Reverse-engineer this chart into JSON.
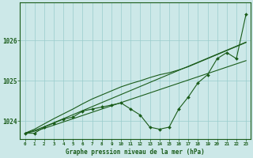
{
  "xlabel": "Graphe pression niveau de la mer (hPa)",
  "ylim": [
    1023.55,
    1026.95
  ],
  "xlim": [
    -0.5,
    23.5
  ],
  "yticks": [
    1024,
    1025,
    1026
  ],
  "xticks": [
    0,
    1,
    2,
    3,
    4,
    5,
    6,
    7,
    8,
    9,
    10,
    11,
    12,
    13,
    14,
    15,
    16,
    17,
    18,
    19,
    20,
    21,
    22,
    23
  ],
  "background_color": "#cce8e8",
  "grid_color": "#99cccc",
  "line_color": "#1a5c1a",
  "marker_line": [
    1023.7,
    1023.7,
    1023.85,
    1023.95,
    1024.05,
    1024.1,
    1024.25,
    1024.3,
    1024.35,
    1024.4,
    1024.45,
    1024.3,
    1024.15,
    1023.85,
    1023.8,
    1023.85,
    1024.3,
    1024.6,
    1024.95,
    1025.15,
    1025.55,
    1025.7,
    1025.55,
    1026.65
  ],
  "straight_lines": [
    [
      1023.7,
      1023.75,
      1023.82,
      1023.9,
      1023.98,
      1024.06,
      1024.14,
      1024.22,
      1024.3,
      1024.38,
      1024.46,
      1024.54,
      1024.62,
      1024.7,
      1024.78,
      1024.86,
      1024.94,
      1025.02,
      1025.1,
      1025.18,
      1025.26,
      1025.34,
      1025.42,
      1025.5
    ],
    [
      1023.7,
      1023.77,
      1023.86,
      1023.96,
      1024.06,
      1024.16,
      1024.26,
      1024.36,
      1024.46,
      1024.56,
      1024.66,
      1024.76,
      1024.86,
      1024.96,
      1025.06,
      1025.16,
      1025.26,
      1025.36,
      1025.46,
      1025.56,
      1025.66,
      1025.76,
      1025.86,
      1025.96
    ],
    [
      1023.7,
      1023.8,
      1023.93,
      1024.06,
      1024.18,
      1024.3,
      1024.43,
      1024.55,
      1024.65,
      1024.75,
      1024.85,
      1024.93,
      1025.0,
      1025.08,
      1025.15,
      1025.2,
      1025.27,
      1025.35,
      1025.45,
      1025.55,
      1025.65,
      1025.75,
      1025.85,
      1025.95
    ]
  ],
  "linewidth": 0.8,
  "marker_size": 2.0
}
